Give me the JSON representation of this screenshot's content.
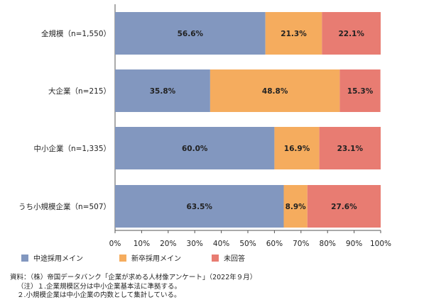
{
  "chart_data": {
    "type": "bar",
    "orientation": "horizontal",
    "stacked": true,
    "categories": [
      "全規模（n=1,550）",
      "大企業（n=215）",
      "中小企業（n=1,335）",
      "うち小規模企業（n=507）"
    ],
    "series": [
      {
        "name": "中途採用メイン",
        "color": "#8297BF",
        "values": [
          56.6,
          35.8,
          60.0,
          63.5
        ],
        "labels": [
          "56.6%",
          "35.8%",
          "60.0%",
          "63.5%"
        ]
      },
      {
        "name": "新卒採用メイン",
        "color": "#F5AC5E",
        "values": [
          21.3,
          48.8,
          16.9,
          8.9
        ],
        "labels": [
          "21.3%",
          "48.8%",
          "16.9%",
          "8.9%"
        ]
      },
      {
        "name": "未回答",
        "color": "#E87C72",
        "values": [
          22.1,
          15.3,
          23.1,
          27.6
        ],
        "labels": [
          "22.1%",
          "15.3%",
          "23.1%",
          "27.6%"
        ]
      }
    ],
    "xlim": [
      0,
      100
    ],
    "xticks": [
      "0%",
      "10%",
      "20%",
      "30%",
      "40%",
      "50%",
      "60%",
      "70%",
      "80%",
      "90%",
      "100%"
    ],
    "grid": false,
    "legend_position": "bottom"
  },
  "notes": {
    "source": "資料：（株）帝国データバンク「企業が求める人材像アンケート」（2022年９月）",
    "note1": "（注）１.企業規模区分は中小企業基本法に準拠する。",
    "note2": "２.小規模企業は中小企業の内数として集計している。"
  }
}
